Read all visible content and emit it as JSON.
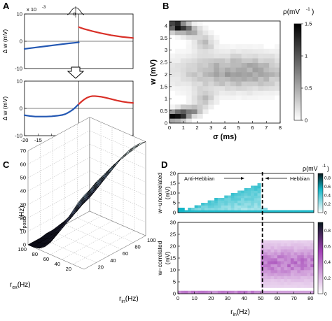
{
  "panels": {
    "A": {
      "label": "A",
      "scale_text": "x 10",
      "scale_exp": "-3",
      "sigma_symbol": "σ",
      "chart_data": [
        {
          "type": "line",
          "ylabel": "Δ w (mV)",
          "xlim": [
            -20,
            20
          ],
          "ylim": [
            -0.01,
            0.01
          ],
          "yticks": [
            -0.01,
            0,
            0.01
          ],
          "ytick_labels": [
            "-10",
            "0",
            "10"
          ],
          "series": [
            {
              "color": "#2458b3",
              "x": [
                -20,
                -16,
                -12,
                -8,
                -4,
                -1,
                0
              ],
              "y": [
                -0.0028,
                -0.0023,
                -0.0018,
                -0.0013,
                -0.0008,
                -0.0005,
                -0.0004
              ]
            },
            {
              "color": "#d93028",
              "x": [
                0,
                0.5,
                2,
                5,
                8,
                12,
                16,
                20
              ],
              "y": [
                0.0052,
                0.005,
                0.0045,
                0.0037,
                0.003,
                0.0022,
                0.0016,
                0.0012
              ]
            }
          ]
        },
        {
          "type": "line",
          "xlabel": "Δ t (ms)",
          "ylabel": "Δ w (mV)",
          "xlim": [
            -20,
            20
          ],
          "ylim": [
            -0.01,
            0.01
          ],
          "xticks": [
            -20,
            -15,
            -10,
            -5,
            0,
            5,
            10,
            15,
            20
          ],
          "yticks": [
            -0.01,
            0,
            0.01
          ],
          "ytick_labels": [
            "-10",
            "0",
            "10"
          ],
          "series": [
            {
              "color": "#2458b3",
              "x": [
                -20,
                -18,
                -16,
                -14,
                -12,
                -10,
                -8,
                -6,
                -5,
                -4,
                -3,
                -2,
                -1,
                0
              ],
              "y": [
                -0.0025,
                -0.0028,
                -0.003,
                -0.003,
                -0.003,
                -0.0029,
                -0.0027,
                -0.0024,
                -0.0021,
                -0.0016,
                -0.001,
                -0.0003,
                0.0006,
                0.0016
              ]
            },
            {
              "color": "#d93028",
              "x": [
                0,
                1,
                2,
                3,
                4,
                5,
                6,
                8,
                10,
                12,
                14,
                16,
                18,
                20
              ],
              "y": [
                0.0016,
                0.0025,
                0.0033,
                0.0039,
                0.0043,
                0.0045,
                0.0045,
                0.0043,
                0.0039,
                0.0034,
                0.0029,
                0.0025,
                0.0022,
                0.002
              ]
            }
          ]
        }
      ]
    },
    "B": {
      "label": "B",
      "chart_data": {
        "type": "heatmap",
        "xlabel": "σ (ms)",
        "ylabel": "w (mV)",
        "colorbar_label": "ρ(mV",
        "colorbar_exp": "-1",
        "colorbar_close": ")",
        "xlim": [
          0,
          8
        ],
        "ylim": [
          0,
          4.2
        ],
        "xticks": [
          0,
          1,
          2,
          3,
          4,
          5,
          6,
          7,
          8
        ],
        "yticks": [
          0,
          0.5,
          1,
          1.5,
          2,
          2.5,
          3,
          3.5,
          4
        ],
        "ytick_labels": [
          "0",
          "0.5",
          "1",
          "1.5",
          "2",
          "2.5",
          "3",
          "3.5",
          "4"
        ],
        "colorbar_ticks": [
          0,
          0.5,
          1,
          1.5
        ],
        "colorbar_tick_labels": [
          "0",
          "0.5",
          "1",
          "1.5"
        ],
        "vmax": 1.5,
        "blobs": [
          {
            "sigma": 0.5,
            "w": 4.0,
            "width": 0.5,
            "height": 0.15,
            "peak": 1.5
          },
          {
            "sigma": 0.5,
            "w": 0.3,
            "width": 0.5,
            "height": 0.15,
            "peak": 1.5
          },
          {
            "sigma": 1.5,
            "w": 3.8,
            "width": 0.5,
            "height": 0.15,
            "peak": 0.7
          },
          {
            "sigma": 1.5,
            "w": 0.5,
            "width": 0.5,
            "height": 0.15,
            "peak": 0.7
          },
          {
            "sigma": 2.5,
            "w": 3.3,
            "width": 0.5,
            "height": 0.25,
            "peak": 0.35
          },
          {
            "sigma": 2.5,
            "w": 1.0,
            "width": 0.5,
            "height": 0.25,
            "peak": 0.35
          },
          {
            "sigma": 5.0,
            "w": 2.1,
            "width": 3.0,
            "height": 0.5,
            "peak": 0.55
          }
        ]
      }
    },
    "C": {
      "label": "C",
      "chart_data": {
        "type": "surface",
        "zlabel": "r",
        "zlabel_sub": "post",
        "zlabel_unit": "(Hz)",
        "xlabel": "r",
        "xlabel_sub": "in",
        "xlabel_unit": "(Hz)",
        "ylabel": "r",
        "ylabel_sub": "ex",
        "ylabel_unit": "(Hz)",
        "zticks": [
          0,
          10,
          20,
          30,
          40,
          50,
          60,
          70
        ],
        "rin_ticks": [
          20,
          40,
          60,
          80,
          100
        ],
        "rex_ticks": [
          20,
          40,
          60,
          80,
          100
        ],
        "rin": [
          0,
          10,
          20,
          30,
          40,
          50,
          60,
          70,
          80,
          90,
          100
        ],
        "rex": [
          0,
          10,
          20,
          30,
          40,
          50,
          60,
          70,
          80,
          90,
          100
        ],
        "rpost": [
          [
            55,
            57,
            60,
            62,
            64,
            66,
            67,
            68,
            69,
            70,
            70
          ],
          [
            48,
            50,
            53,
            56,
            58,
            60,
            62,
            63,
            65,
            66,
            67
          ],
          [
            40,
            43,
            46,
            49,
            52,
            54,
            56,
            58,
            60,
            62,
            63
          ],
          [
            32,
            35,
            38,
            41,
            44,
            47,
            49,
            52,
            54,
            56,
            58
          ],
          [
            24,
            27,
            30,
            33,
            36,
            39,
            42,
            45,
            47,
            49,
            52
          ],
          [
            16,
            19,
            22,
            25,
            28,
            31,
            34,
            37,
            40,
            42,
            45
          ],
          [
            9,
            12,
            15,
            18,
            21,
            24,
            27,
            30,
            32,
            35,
            38
          ],
          [
            4,
            6,
            9,
            12,
            14,
            17,
            20,
            23,
            25,
            28,
            31
          ],
          [
            1,
            2,
            4,
            6,
            8,
            11,
            13,
            16,
            18,
            21,
            24
          ],
          [
            0,
            1,
            1,
            2,
            4,
            6,
            8,
            10,
            12,
            14,
            17
          ],
          [
            0,
            0,
            0,
            1,
            1,
            2,
            3,
            5,
            7,
            9,
            11
          ]
        ]
      }
    },
    "D": {
      "label": "D",
      "anti_hebbian": "Anti-Hebbian",
      "hebbian": "Hebbian",
      "xlabel": "r",
      "xlabel_sub": "in",
      "xlabel_unit": "(Hz)",
      "colorbar_label": "ρ(mV",
      "colorbar_exp": "-1",
      "colorbar_close": ")",
      "chart_data": [
        {
          "type": "heatmap",
          "ylabel_line1": "w−uncorrelated",
          "ylabel_line2": "(mV)",
          "xlim": [
            0,
            82
          ],
          "ylim": [
            0,
            20
          ],
          "yticks": [
            0,
            5,
            10,
            15,
            20
          ],
          "threshold_rin": 51,
          "color": "#12b5c6",
          "colorbar_ticks": [
            0,
            0.2,
            0.4,
            0.6,
            0.8
          ],
          "colorbar_tick_labels": [
            "0",
            "0.2",
            "0.4",
            "0.6",
            "0.8"
          ]
        },
        {
          "type": "heatmap",
          "ylabel_line1": "w−correlated",
          "ylabel_line2": "(mV)",
          "xlim": [
            0,
            82
          ],
          "ylim": [
            0,
            30
          ],
          "yticks": [
            0,
            5,
            10,
            15,
            20,
            25,
            30
          ],
          "xticks": [
            0,
            10,
            20,
            30,
            40,
            50,
            60,
            70,
            80
          ],
          "threshold_rin": 51,
          "color": "#a13fb5",
          "colorbar_ticks": [
            0,
            0.2,
            0.4,
            0.6,
            0.8
          ],
          "colorbar_tick_labels": [
            "0",
            "0.2",
            "0.4",
            "0.6",
            "0.8"
          ]
        }
      ]
    }
  }
}
